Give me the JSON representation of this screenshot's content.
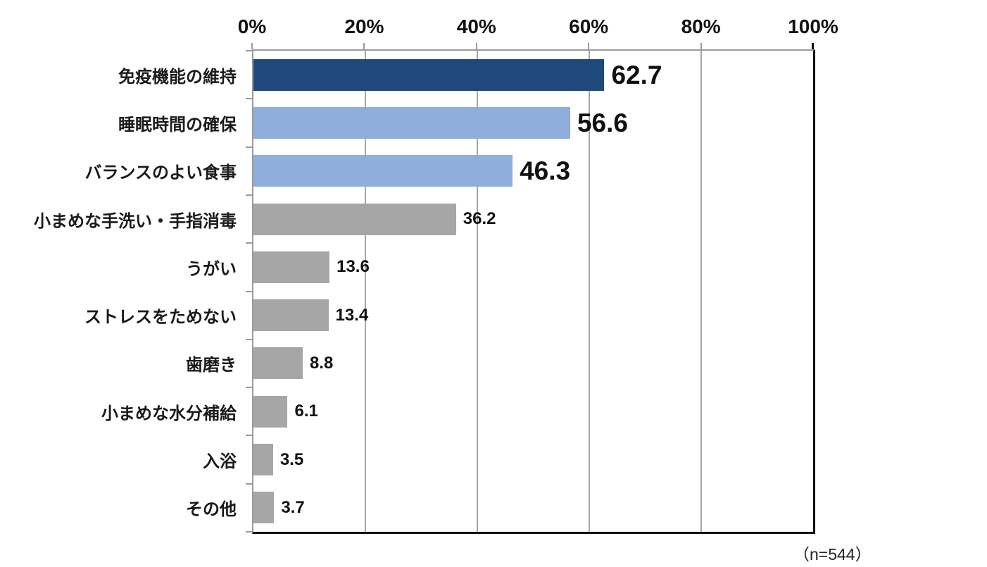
{
  "chart_data": {
    "type": "bar",
    "orientation": "horizontal",
    "title": "",
    "xlabel": "",
    "ylabel": "",
    "xlim": [
      0,
      100
    ],
    "grid": "vertical",
    "axis_position": "top",
    "categories": [
      "免疫機能の維持",
      "睡眠時間の確保",
      "バランスのよい食事",
      "小まめな手洗い・手指消毒",
      "うがい",
      "ストレスをためない",
      "歯磨き",
      "小まめな水分補給",
      "入浴",
      "その他"
    ],
    "values": [
      62.7,
      56.6,
      46.3,
      36.2,
      13.6,
      13.4,
      8.8,
      6.1,
      3.5,
      3.7
    ],
    "value_labels": [
      "62.7",
      "56.6",
      "46.3",
      "36.2",
      "13.6",
      "13.4",
      "8.8",
      "6.1",
      "3.5",
      "3.7"
    ],
    "emphasized_value_indices": [
      0,
      1,
      2
    ],
    "bar_colors": [
      "#20497b",
      "#8faedb",
      "#8faedb",
      "#a6a6a6",
      "#a6a6a6",
      "#a6a6a6",
      "#a6a6a6",
      "#a6a6a6",
      "#a6a6a6",
      "#a6a6a6"
    ],
    "x_axis": {
      "ticks": [
        "0%",
        "20%",
        "40%",
        "60%",
        "80%",
        "100%"
      ],
      "min": 0,
      "max": 100,
      "step": 20
    },
    "note": "（n=544）",
    "colors": {
      "bar_dark_blue": "#20497b",
      "bar_light_blue": "#8faedb",
      "bar_gray": "#a6a6a6",
      "gridline": "#a6a6a6",
      "axis_gray": "#9b9b9b",
      "axis_black": "#111111",
      "text": "#111111",
      "background": "#ffffff"
    }
  }
}
